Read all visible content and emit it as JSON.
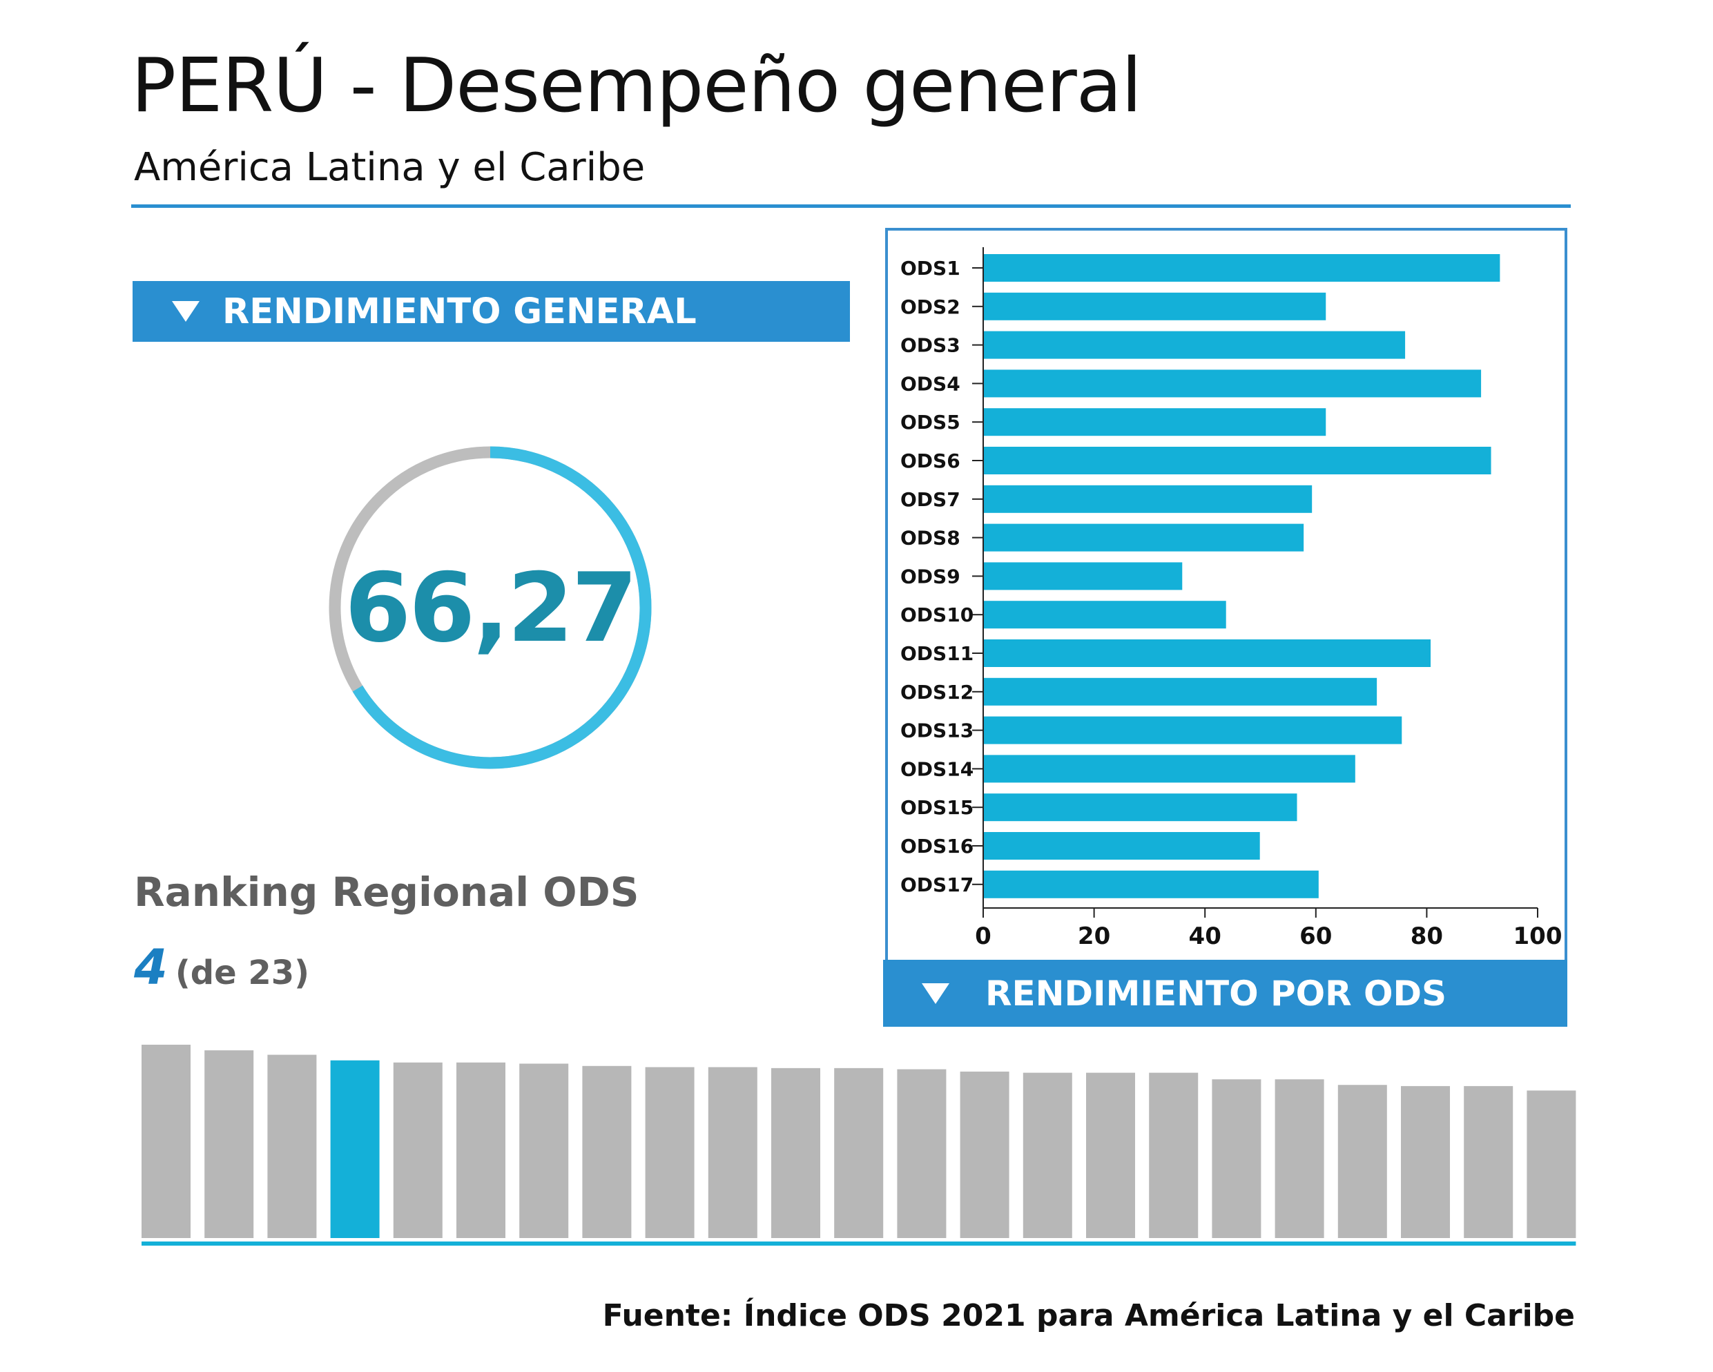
{
  "header": {
    "title": "PERÚ - Desempeño general",
    "subtitle": "América Latina y el Caribe"
  },
  "colors": {
    "accent_blue": "#2a8fd0",
    "bar_cyan": "#14b0d8",
    "ranking_gray": "#b7b7b7",
    "gauge_gray": "#bdbdbd",
    "gauge_blue": "#3bbde3",
    "score_teal": "#1c8eaa"
  },
  "general": {
    "banner_label": "RENDIMIENTO GENERAL",
    "score_text": "66,27",
    "score_value": 66.27
  },
  "ranking": {
    "label": "Ranking Regional ODS",
    "position": "4",
    "of_text": "(de 23)"
  },
  "ods_panel": {
    "banner_label": "RENDIMIENTO POR ODS"
  },
  "source": "Fuente: Índice ODS 2021 para América Latina y el Caribe",
  "chart_data": [
    {
      "type": "bar",
      "orientation": "horizontal",
      "categories": [
        "ODS1",
        "ODS2",
        "ODS3",
        "ODS4",
        "ODS5",
        "ODS6",
        "ODS7",
        "ODS8",
        "ODS9",
        "ODS10",
        "ODS11",
        "ODS12",
        "ODS13",
        "ODS14",
        "ODS15",
        "ODS16",
        "ODS17"
      ],
      "values": [
        93.2,
        61.8,
        76.1,
        89.8,
        61.8,
        91.6,
        59.3,
        57.8,
        35.9,
        43.8,
        80.7,
        71.0,
        75.5,
        67.1,
        56.6,
        49.9,
        60.5
      ],
      "xlim": [
        0,
        100
      ],
      "xticks": [
        0,
        20,
        40,
        60,
        80,
        100
      ],
      "grid": false
    },
    {
      "type": "bar",
      "orientation": "vertical",
      "values": [
        100,
        97.1,
        94.8,
        91.9,
        90.8,
        90.8,
        90.2,
        89.0,
        88.4,
        88.4,
        87.9,
        87.9,
        87.3,
        86.1,
        85.5,
        85.5,
        85.5,
        82.1,
        82.1,
        79.2,
        78.6,
        78.6,
        76.3
      ],
      "highlight_index": 3,
      "grid": false
    }
  ]
}
